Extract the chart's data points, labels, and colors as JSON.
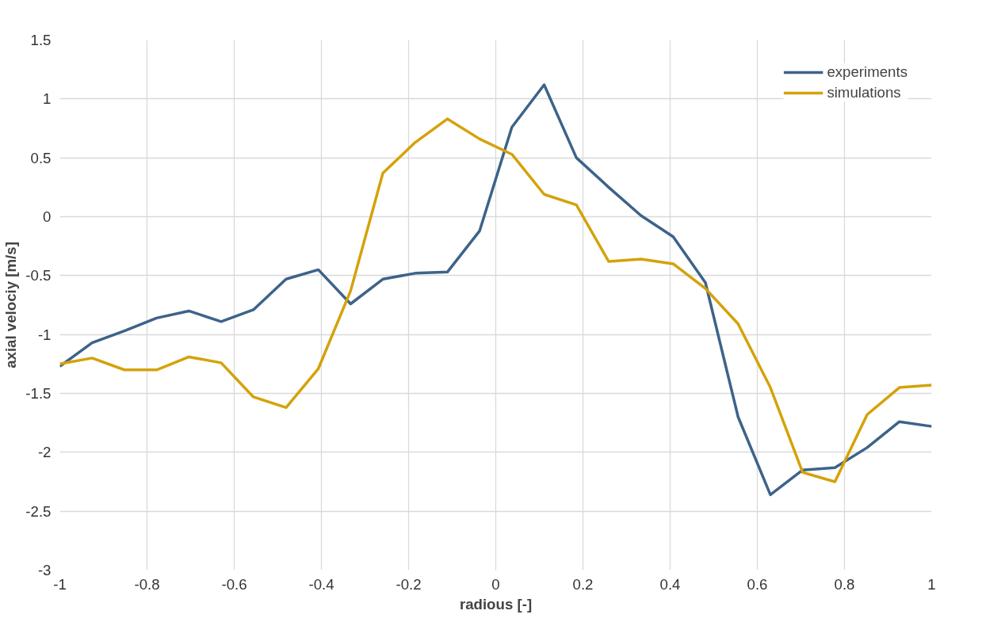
{
  "chart_data": {
    "type": "line",
    "xlabel": "radious [-]",
    "ylabel": "axial velociy [m/s]",
    "x": [
      -1,
      -0.926,
      -0.852,
      -0.778,
      -0.704,
      -0.63,
      -0.556,
      -0.481,
      -0.407,
      -0.333,
      -0.259,
      -0.185,
      -0.111,
      -0.037,
      0.037,
      0.111,
      0.185,
      0.259,
      0.333,
      0.407,
      0.481,
      0.556,
      0.63,
      0.704,
      0.778,
      0.852,
      0.926,
      1
    ],
    "series": [
      {
        "name": "experiments",
        "color": "#3d6389",
        "values": [
          -1.27,
          -1.07,
          -0.97,
          -0.86,
          -0.8,
          -0.89,
          -0.79,
          -0.53,
          -0.45,
          -0.74,
          -0.53,
          -0.48,
          -0.47,
          -0.12,
          0.76,
          1.12,
          0.5,
          0.25,
          0.01,
          -0.17,
          -0.56,
          -1.7,
          -2.36,
          -2.15,
          -2.13,
          -1.96,
          -1.74,
          -1.78
        ]
      },
      {
        "name": "simulations",
        "color": "#d4a20a",
        "values": [
          -1.25,
          -1.2,
          -1.3,
          -1.3,
          -1.19,
          -1.24,
          -1.53,
          -1.62,
          -1.29,
          -0.63,
          0.37,
          0.63,
          0.83,
          0.66,
          0.53,
          0.19,
          0.1,
          -0.38,
          -0.36,
          -0.4,
          -0.61,
          -0.91,
          -1.45,
          -2.17,
          -2.25,
          -1.68,
          -1.45,
          -1.43
        ]
      }
    ],
    "xlim": [
      -1,
      1
    ],
    "xticks": [
      -1,
      -0.8,
      -0.6,
      -0.4,
      -0.2,
      0,
      0.2,
      0.4,
      0.6,
      0.8,
      1
    ],
    "ylim": [
      -3,
      1.5
    ],
    "yticks": [
      -3,
      -2.5,
      -2,
      -1.5,
      -1,
      -0.5,
      0,
      0.5,
      1,
      1.5
    ],
    "grid": true,
    "legend": "top right",
    "marker": "none",
    "line_style": "solid"
  }
}
